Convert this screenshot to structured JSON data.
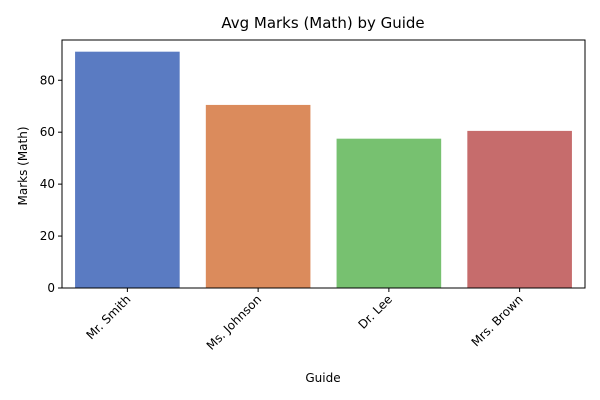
{
  "chart_data": {
    "type": "bar",
    "title": "Avg Marks (Math) by Guide",
    "xlabel": "Guide",
    "ylabel": "Marks (Math)",
    "categories": [
      "Mr. Smith",
      "Ms. Johnson",
      "Dr. Lee",
      "Mrs. Brown"
    ],
    "values": [
      91,
      70.5,
      57.5,
      60.5
    ],
    "colors": [
      "#5a7bc2",
      "#db8b5c",
      "#77c170",
      "#c66c6c"
    ],
    "ylim": [
      0,
      95.5
    ],
    "yticks": [
      0,
      20,
      40,
      60,
      80
    ],
    "grid": false,
    "legend": "none"
  }
}
